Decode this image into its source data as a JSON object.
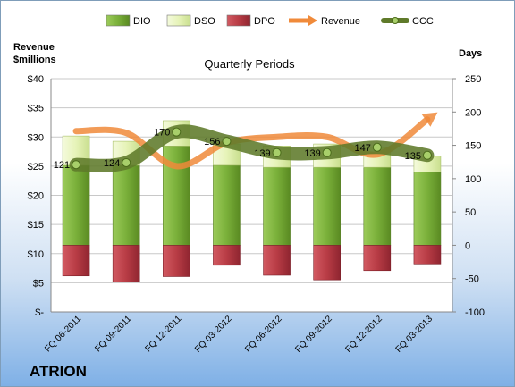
{
  "chart_data": {
    "type": "bar",
    "title": "Quarterly Periods",
    "company": "ATRION",
    "left_axis_label": [
      "Revenue",
      "$millions"
    ],
    "right_axis_label": "Days",
    "left_ylim": [
      0,
      40
    ],
    "left_ticks": [
      "$-",
      "$5",
      "$10",
      "$15",
      "$20",
      "$25",
      "$30",
      "$35",
      "$40"
    ],
    "right_ylim": [
      -100,
      250
    ],
    "right_ticks": [
      "-100",
      "-50",
      "0",
      "50",
      "100",
      "150",
      "200",
      "250"
    ],
    "legend_position": "top",
    "categories": [
      "FQ 06-2011",
      "FQ 09-2011",
      "FQ 12-2011",
      "FQ 03-2012",
      "FQ 06-2012",
      "FQ 09-2012",
      "FQ 12-2012",
      "FQ 03-2013"
    ],
    "series": [
      {
        "name": "DIO",
        "axis": "right",
        "color": "#7ab03a",
        "values": [
          120,
          120,
          149,
          120,
          117,
          117,
          117,
          110
        ]
      },
      {
        "name": "DSO",
        "axis": "right",
        "color": "#eaf5c4",
        "values": [
          44,
          36,
          38,
          32,
          32,
          35,
          30,
          24
        ]
      },
      {
        "name": "DPO",
        "axis": "right",
        "color": "#b83c45",
        "values": [
          -46,
          -55,
          -47,
          -30,
          -45,
          -52,
          -38,
          -28
        ]
      },
      {
        "name": "Revenue",
        "axis": "left",
        "color": "#f08a3a",
        "values": [
          31.0,
          30.7,
          25.0,
          29.0,
          30.0,
          30.0,
          27.0,
          33.0
        ]
      },
      {
        "name": "CCC",
        "axis": "right",
        "color": "#5f7a2a",
        "values": [
          121,
          124,
          170,
          156,
          139,
          139,
          147,
          135
        ],
        "labels": [
          "121",
          "124",
          "170",
          "156",
          "139",
          "139",
          "147",
          "135"
        ]
      }
    ]
  }
}
